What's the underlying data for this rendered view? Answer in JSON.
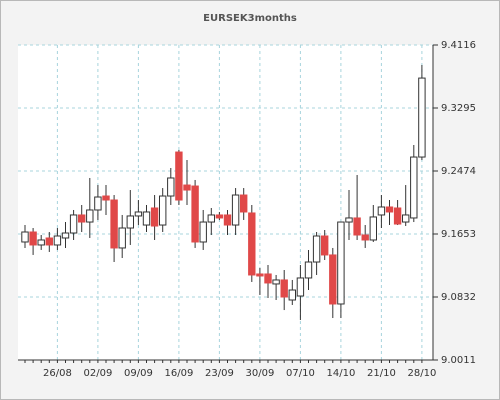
{
  "chart_data": {
    "type": "candlestick",
    "title": "EURSEK3months",
    "categories": [
      null,
      null,
      null,
      null,
      "26/08",
      null,
      null,
      null,
      null,
      "02/09",
      null,
      null,
      null,
      null,
      "09/09",
      null,
      null,
      null,
      null,
      "16/09",
      null,
      null,
      null,
      null,
      "23/09",
      null,
      null,
      null,
      null,
      "30/09",
      null,
      null,
      null,
      null,
      "07/10",
      null,
      null,
      null,
      null,
      "14/10",
      null,
      null,
      null,
      null,
      "21/10",
      null,
      null,
      null,
      null,
      "28/10"
    ],
    "open": [
      9.1549,
      9.1679,
      9.151,
      9.1601,
      9.151,
      9.1601,
      9.1666,
      9.1901,
      9.1809,
      9.1966,
      9.2148,
      9.2096,
      9.1471,
      9.1731,
      9.1888,
      9.177,
      9.1992,
      9.177,
      9.2148,
      9.2721,
      9.2291,
      9.2278,
      9.1549,
      9.1809,
      9.1901,
      9.1901,
      9.177,
      9.2161,
      9.1927,
      9.1132,
      9.1132,
      9.1002,
      9.1054,
      9.0793,
      9.0845,
      9.108,
      9.1288,
      9.1627,
      9.138,
      9.0741,
      9.1809,
      9.1862,
      9.164,
      9.1575,
      9.1901,
      9.2005,
      9.1992,
      9.1809,
      9.1862,
      9.2656
    ],
    "high": [
      9.177,
      9.1731,
      9.164,
      9.1679,
      9.1731,
      9.1809,
      9.1966,
      9.2031,
      9.2383,
      9.2291,
      9.2291,
      9.2161,
      9.1901,
      9.2226,
      9.2096,
      9.2031,
      9.2161,
      9.2252,
      9.2513,
      9.2748,
      9.2617,
      9.2357,
      9.1966,
      9.1992,
      9.194,
      9.1966,
      9.2252,
      9.2252,
      9.2031,
      9.121,
      9.1249,
      9.1119,
      9.1184,
      9.1054,
      9.1249,
      9.1445,
      9.1679,
      9.1705,
      9.1471,
      9.1809,
      9.2226,
      9.2422,
      9.177,
      9.2031,
      9.2161,
      9.2096,
      9.2096,
      9.2291,
      9.2813,
      9.3855
    ],
    "low": [
      9.1471,
      9.138,
      9.1445,
      9.1419,
      9.1445,
      9.1471,
      9.1575,
      9.1679,
      9.1601,
      9.1836,
      9.1901,
      9.1288,
      9.134,
      9.151,
      9.177,
      9.1679,
      9.1575,
      9.1679,
      9.2031,
      9.2031,
      9.2031,
      9.1471,
      9.1445,
      9.164,
      9.1836,
      9.164,
      9.164,
      9.1836,
      9.1028,
      9.0858,
      9.0819,
      9.0793,
      9.0662,
      9.0728,
      9.0532,
      9.0923,
      9.1119,
      9.1314,
      9.0558,
      9.0558,
      9.1575,
      9.1575,
      9.1471,
      9.1549,
      9.1731,
      9.177,
      9.177,
      9.1757,
      9.1809,
      9.2617
    ],
    "close": [
      9.1679,
      9.151,
      9.1575,
      9.151,
      9.1627,
      9.1666,
      9.1901,
      9.1809,
      9.1966,
      9.2135,
      9.2096,
      9.1471,
      9.1731,
      9.1888,
      9.194,
      9.194,
      9.1757,
      9.2148,
      9.2383,
      9.2096,
      9.2226,
      9.1549,
      9.1809,
      9.1901,
      9.1862,
      9.177,
      9.2161,
      9.194,
      9.1119,
      9.1106,
      9.1015,
      9.1054,
      9.0832,
      9.0923,
      9.108,
      9.1288,
      9.1627,
      9.138,
      9.0741,
      9.1809,
      9.1862,
      9.164,
      9.1575,
      9.1875,
      9.2005,
      9.194,
      9.1783,
      9.1901,
      9.2656,
      9.3685
    ],
    "up_color": "#ffffff",
    "down_color": "#e04848",
    "ylim": [
      9.0011,
      9.4116
    ],
    "yticks": [
      9.0011,
      9.0832,
      9.1653,
      9.2474,
      9.3295,
      9.4116
    ],
    "grid": true
  }
}
